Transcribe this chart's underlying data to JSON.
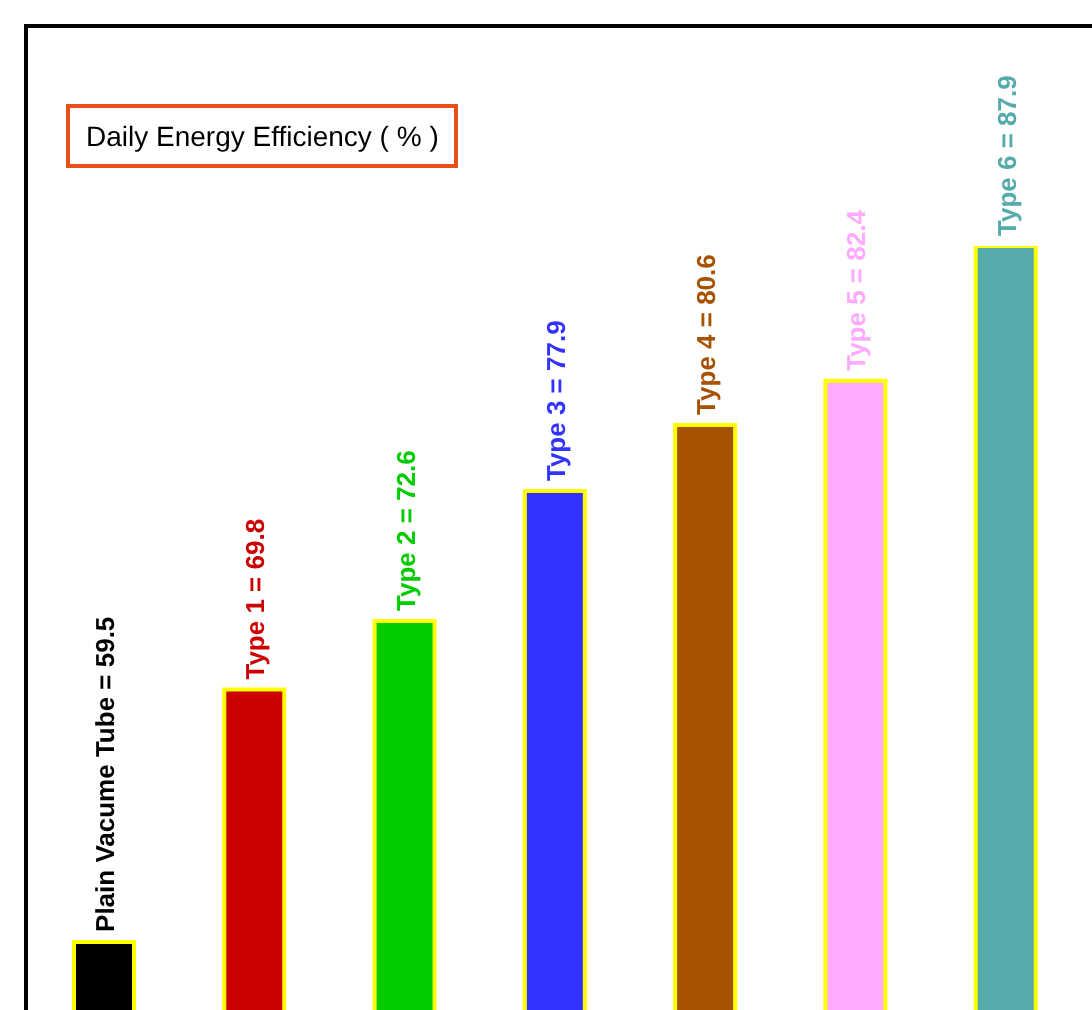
{
  "chart_data": {
    "type": "bar",
    "title": "Daily Energy Efficiency ( % )",
    "categories": [
      null,
      null,
      null,
      null,
      null,
      null,
      null
    ],
    "value_labels": [
      "Plain Vacume Tube = 59.5",
      "Type 1 = 69.8",
      "Type 2 = 72.6",
      "Type 3 = 77.9",
      "Type 4 = 80.6",
      "Type 5 = 82.4",
      "Type 6 = 87.9"
    ],
    "values": [
      59.5,
      69.8,
      72.6,
      77.9,
      80.6,
      82.4,
      87.9
    ],
    "colors": [
      "#000000",
      "#cc0000",
      "#00cc00",
      "#3333ff",
      "#a65200",
      "#ffaaff",
      "#55aaaa"
    ],
    "tick_labels": false
  }
}
